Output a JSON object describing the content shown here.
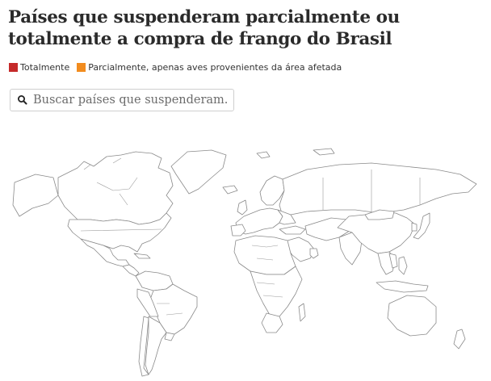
{
  "title": "Países que suspenderam parcialmente ou totalmente a compra de frango do Brasil",
  "legend": {
    "total_label": "Totalmente",
    "partial_label": "Parcialmente, apenas aves provenientes da área afetada"
  },
  "colors": {
    "total": "#c52a2a",
    "partial": "#f28c1e",
    "land": "#ffffff",
    "border": "#8a8a8a"
  },
  "search": {
    "placeholder": "Buscar países que suspenderam.."
  },
  "icons": {
    "search": "magnifier-icon"
  }
}
